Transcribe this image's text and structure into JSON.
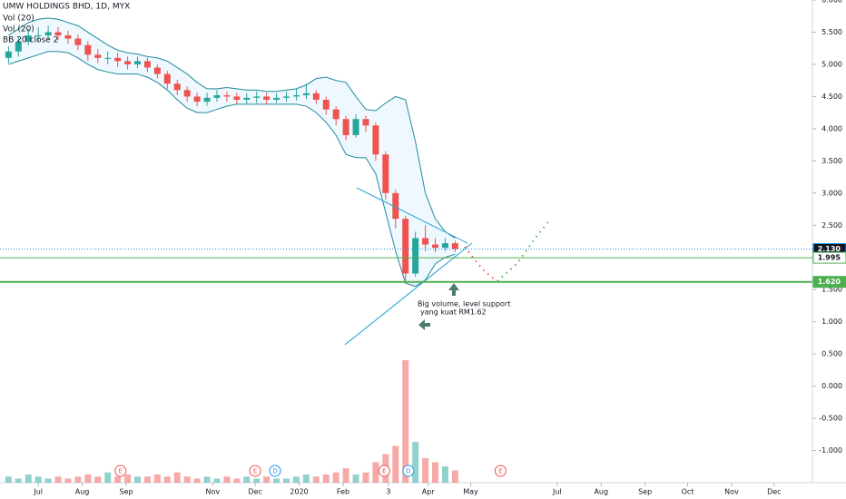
{
  "chart_data": {
    "type": "candlestick",
    "title": "UMW HOLDINGS BHD, 1D, MYX",
    "indicators": [
      "Vol (20)",
      "Vol (20)",
      "BB 20 close 2"
    ],
    "x": [
      -21,
      -14,
      -7,
      0,
      7,
      14,
      21,
      28,
      35,
      42,
      49,
      56,
      63,
      70,
      77,
      84,
      91,
      98,
      105,
      112,
      119,
      126,
      133,
      140,
      147,
      154,
      161,
      168,
      175,
      182,
      189,
      196,
      203,
      210,
      217,
      224,
      231,
      238,
      245,
      252,
      259,
      266,
      273,
      280,
      287,
      294
    ],
    "open": [
      5.1,
      5.2,
      5.35,
      5.45,
      5.45,
      5.5,
      5.45,
      5.4,
      5.3,
      5.15,
      5.1,
      5.1,
      5.05,
      5.0,
      5.05,
      4.95,
      4.85,
      4.7,
      4.6,
      4.5,
      4.42,
      4.48,
      4.52,
      4.5,
      4.45,
      4.48,
      4.5,
      4.45,
      4.48,
      4.5,
      4.52,
      4.55,
      4.45,
      4.3,
      4.15,
      3.9,
      4.15,
      4.05,
      3.6,
      3.0,
      2.6,
      1.75,
      2.3,
      2.2,
      2.15,
      2.22
    ],
    "high": [
      5.28,
      5.42,
      5.55,
      5.58,
      5.6,
      5.58,
      5.52,
      5.46,
      5.36,
      5.24,
      5.2,
      5.18,
      5.12,
      5.12,
      5.1,
      5.0,
      4.9,
      4.76,
      4.66,
      4.56,
      4.56,
      4.6,
      4.58,
      4.56,
      4.55,
      4.58,
      4.56,
      4.55,
      4.58,
      4.62,
      4.7,
      4.6,
      4.5,
      4.35,
      4.2,
      4.22,
      4.2,
      4.1,
      3.65,
      3.05,
      2.65,
      2.4,
      2.5,
      2.3,
      2.3,
      2.26
    ],
    "low": [
      5.02,
      5.12,
      5.3,
      5.36,
      5.38,
      5.38,
      5.32,
      5.22,
      5.05,
      5.02,
      5.0,
      4.96,
      4.92,
      4.94,
      4.88,
      4.78,
      4.62,
      4.52,
      4.42,
      4.35,
      4.36,
      4.42,
      4.42,
      4.38,
      4.38,
      4.4,
      4.38,
      4.4,
      4.42,
      4.44,
      4.46,
      4.38,
      4.22,
      4.05,
      3.82,
      3.86,
      3.95,
      3.5,
      2.9,
      2.45,
      1.62,
      1.7,
      2.1,
      2.08,
      2.1,
      2.08
    ],
    "close": [
      5.2,
      5.35,
      5.45,
      5.45,
      5.5,
      5.45,
      5.4,
      5.3,
      5.15,
      5.1,
      5.1,
      5.05,
      5.0,
      5.05,
      4.95,
      4.85,
      4.7,
      4.6,
      4.5,
      4.42,
      4.48,
      4.52,
      4.5,
      4.45,
      4.48,
      4.5,
      4.45,
      4.48,
      4.5,
      4.52,
      4.55,
      4.45,
      4.3,
      4.15,
      3.9,
      4.15,
      4.05,
      3.6,
      3.0,
      2.6,
      1.75,
      2.3,
      2.2,
      2.15,
      2.22,
      2.13
    ],
    "up_color": "#26a69a",
    "down_color": "#ef5350",
    "bands": {
      "color": "#1e8a9a",
      "upper": [
        5.45,
        5.55,
        5.65,
        5.7,
        5.72,
        5.7,
        5.65,
        5.6,
        5.5,
        5.4,
        5.3,
        5.22,
        5.18,
        5.16,
        5.12,
        5.1,
        5.05,
        4.95,
        4.85,
        4.72,
        4.62,
        4.62,
        4.64,
        4.62,
        4.6,
        4.6,
        4.58,
        4.58,
        4.6,
        4.62,
        4.68,
        4.78,
        4.8,
        4.75,
        4.72,
        4.5,
        4.3,
        4.28,
        4.4,
        4.5,
        4.45,
        3.8,
        3.0,
        2.6,
        2.4,
        2.3
      ],
      "lower": [
        5.0,
        5.05,
        5.1,
        5.15,
        5.2,
        5.2,
        5.18,
        5.1,
        5.0,
        4.92,
        4.88,
        4.85,
        4.85,
        4.85,
        4.8,
        4.72,
        4.6,
        4.45,
        4.32,
        4.25,
        4.25,
        4.3,
        4.35,
        4.38,
        4.38,
        4.38,
        4.38,
        4.38,
        4.38,
        4.38,
        4.35,
        4.25,
        4.1,
        3.9,
        3.6,
        3.55,
        3.55,
        3.3,
        2.7,
        2.1,
        1.6,
        1.55,
        1.65,
        1.9,
        2.0,
        2.05
      ]
    },
    "volume": [
      3,
      2,
      4,
      3,
      2,
      3,
      2,
      3,
      4,
      3,
      5,
      3,
      4,
      3,
      3,
      4,
      3,
      5,
      3,
      2,
      3,
      2,
      3,
      2,
      3,
      2,
      3,
      2,
      2,
      3,
      4,
      3,
      4,
      5,
      7,
      4,
      5,
      10,
      14,
      18,
      60,
      20,
      12,
      10,
      8,
      6
    ],
    "y2lim": [
      0,
      80
    ],
    "xlim": [
      -27,
      546
    ],
    "xticks": [
      {
        "value": 0,
        "label": "Jul"
      },
      {
        "value": 31,
        "label": "Aug"
      },
      {
        "value": 62,
        "label": "Sep"
      },
      {
        "value": 123,
        "label": "Nov"
      },
      {
        "value": 153,
        "label": "Dec"
      },
      {
        "value": 184,
        "label": "2020"
      },
      {
        "value": 215,
        "label": "Feb"
      },
      {
        "value": 247,
        "label": "3"
      },
      {
        "value": 275,
        "label": "Apr"
      },
      {
        "value": 305,
        "label": "May"
      },
      {
        "value": 366,
        "label": "Jul"
      },
      {
        "value": 397,
        "label": "Aug"
      },
      {
        "value": 428,
        "label": "Sep"
      },
      {
        "value": 458,
        "label": "Oct"
      },
      {
        "value": 489,
        "label": "Nov"
      },
      {
        "value": 519,
        "label": "Dec"
      }
    ],
    "ylim": [
      -1.5,
      6.0
    ],
    "yticks": [
      {
        "value": 6,
        "label": "6.000"
      },
      {
        "value": 5.5,
        "label": "5.500"
      },
      {
        "value": 5,
        "label": "5.000"
      },
      {
        "value": 4.5,
        "label": "4.500"
      },
      {
        "value": 4,
        "label": "4.000"
      },
      {
        "value": 3.5,
        "label": "3.500"
      },
      {
        "value": 3,
        "label": "3.000"
      },
      {
        "value": 2.5,
        "label": "2.500"
      },
      {
        "value": 2,
        "label": "2.000"
      },
      {
        "value": 1.5,
        "label": "1.500"
      },
      {
        "value": 1,
        "label": "1.000"
      },
      {
        "value": 0.5,
        "label": "0.500"
      },
      {
        "value": 0,
        "label": "0.000"
      },
      {
        "value": -0.5,
        "label": "-0.500"
      },
      {
        "value": -1,
        "label": "-1.000"
      }
    ],
    "price_lines": [
      {
        "value": 2.13,
        "label": "2.130",
        "color": "#2196f3"
      },
      {
        "value": 1.995,
        "label": "1.995",
        "color": "#4caf50"
      },
      {
        "value": 1.62,
        "label": "1.620",
        "color": "#4caf50"
      }
    ],
    "annotation": [
      "Big volume, level support",
      "yang kuat RM1.62"
    ],
    "events": [
      {
        "label": "E",
        "x": 58
      },
      {
        "label": "E",
        "x": 153
      },
      {
        "label": "D",
        "x": 167
      },
      {
        "label": "E",
        "x": 244
      },
      {
        "label": "D",
        "x": 261
      },
      {
        "label": "E",
        "x": 326
      }
    ]
  }
}
